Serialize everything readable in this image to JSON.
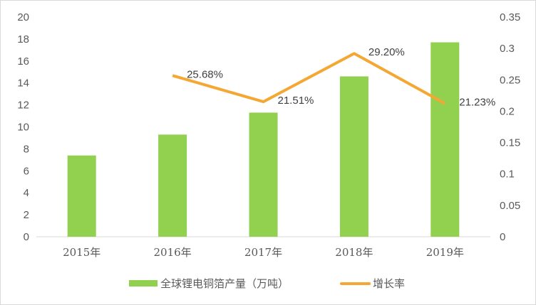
{
  "chart_data": {
    "type": "bar+line",
    "categories": [
      "2015年",
      "2016年",
      "2017年",
      "2018年",
      "2019年"
    ],
    "series": [
      {
        "name": "全球锂电铜箔产量（万吨）",
        "type": "bar",
        "axis": "left",
        "color": "#92D050",
        "values": [
          7.4,
          9.3,
          11.3,
          14.6,
          17.7
        ]
      },
      {
        "name": "增长率",
        "type": "line",
        "axis": "right",
        "color": "#F5A733",
        "values": [
          null,
          0.2568,
          0.2151,
          0.292,
          0.2123
        ],
        "labels": [
          null,
          "25.68%",
          "21.51%",
          "29.20%",
          "21.23%"
        ]
      }
    ],
    "left_axis": {
      "min": 0,
      "max": 20,
      "step": 2,
      "ticks": [
        "0",
        "2",
        "4",
        "6",
        "8",
        "10",
        "12",
        "14",
        "16",
        "18",
        "20"
      ]
    },
    "right_axis": {
      "min": 0,
      "max": 0.35,
      "step": 0.05,
      "ticks": [
        "0",
        "0.05",
        "0.1",
        "0.15",
        "0.2",
        "0.25",
        "0.3",
        "0.35"
      ]
    },
    "grid": false,
    "legend": "bottom"
  }
}
